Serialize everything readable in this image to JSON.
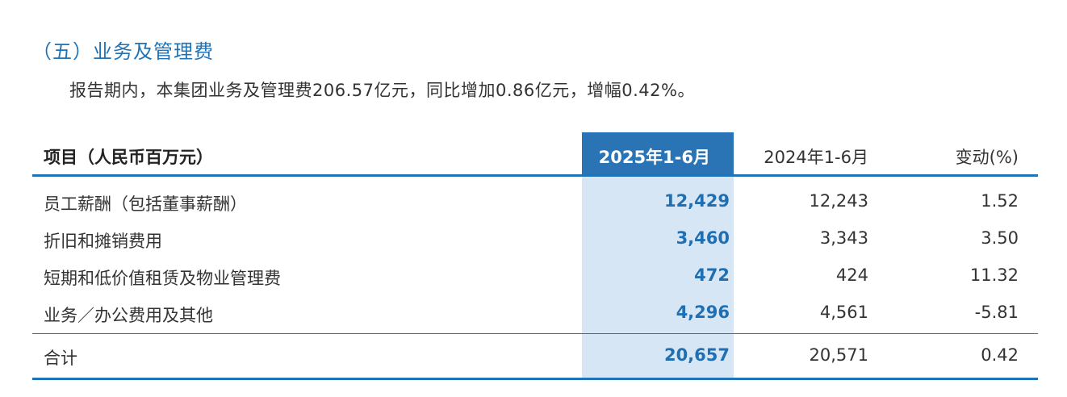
{
  "section": {
    "title": "（五）业务及管理费",
    "summary": "报告期内，本集团业务及管理费206.57亿元，同比增加0.86亿元，增幅0.42%。"
  },
  "table": {
    "headers": {
      "item": "项目（人民币百万元）",
      "current": "2025年1-6月",
      "previous": "2024年1-6月",
      "change": "变动(%)"
    },
    "rows": [
      {
        "item": "员工薪酬（包括董事薪酬）",
        "current": "12,429",
        "previous": "12,243",
        "change": "1.52"
      },
      {
        "item": "折旧和摊销费用",
        "current": "3,460",
        "previous": "3,343",
        "change": "3.50"
      },
      {
        "item": "短期和低价值租赁及物业管理费",
        "current": "472",
        "previous": "424",
        "change": "11.32"
      },
      {
        "item": "业务／办公费用及其他",
        "current": "4,296",
        "previous": "4,561",
        "change": "-5.81"
      }
    ],
    "total": {
      "item": "合计",
      "current": "20,657",
      "previous": "20,571",
      "change": "0.42"
    }
  },
  "colors": {
    "accent": "#1f73b7",
    "highlight_header": "#2a73b4",
    "highlight_column": "#d6e6f5"
  }
}
